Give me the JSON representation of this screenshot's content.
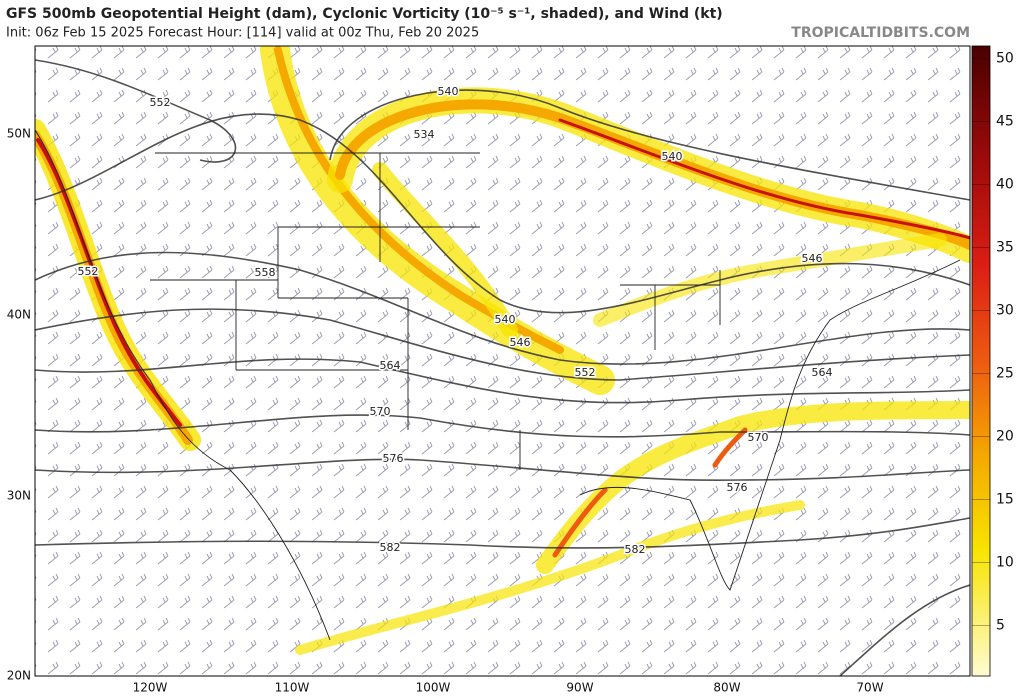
{
  "header": {
    "title": "GFS 500mb Geopotential Height (dam), Cyclonic Vorticity (10⁻⁵ s⁻¹, shaded), and Wind (kt)",
    "subtitle": "Init: 06z Feb 15 2025   Forecast Hour: [114]   valid at 00z Thu, Feb 20 2025",
    "source": "TROPICALTIDBITS.COM"
  },
  "map": {
    "lat_labels": [
      "50N",
      "40N",
      "30N",
      "20N"
    ],
    "lon_labels": [
      "120W",
      "110W",
      "100W",
      "90W",
      "80W",
      "70W"
    ],
    "contour_labels": [
      "552",
      "540",
      "534",
      "540",
      "552",
      "558",
      "546",
      "540",
      "546",
      "564",
      "552",
      "564",
      "570",
      "570",
      "576",
      "576",
      "582",
      "582"
    ]
  },
  "colorbar": {
    "range": [
      1,
      51
    ],
    "ticks": [
      5,
      10,
      15,
      20,
      25,
      30,
      35,
      40,
      45,
      50
    ]
  }
}
